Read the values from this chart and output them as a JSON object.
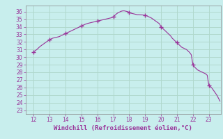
{
  "xlabel": "Windchill (Refroidissement éolien,°C)",
  "xlim": [
    11.5,
    23.75
  ],
  "ylim": [
    22.5,
    36.8
  ],
  "xticks": [
    12,
    13,
    14,
    15,
    16,
    17,
    18,
    19,
    20,
    21,
    22,
    23
  ],
  "yticks": [
    23,
    24,
    25,
    26,
    27,
    28,
    29,
    30,
    31,
    32,
    33,
    34,
    35,
    36
  ],
  "bg_color": "#c8eeed",
  "grid_color": "#b0d8cc",
  "line_color": "#993399",
  "x": [
    12.0,
    12.1,
    12.2,
    12.3,
    12.4,
    12.5,
    12.6,
    12.7,
    12.8,
    12.9,
    13.0,
    13.1,
    13.2,
    13.3,
    13.4,
    13.5,
    13.6,
    13.7,
    13.8,
    13.9,
    14.0,
    14.1,
    14.2,
    14.3,
    14.4,
    14.5,
    14.6,
    14.7,
    14.8,
    14.9,
    15.0,
    15.1,
    15.2,
    15.3,
    15.4,
    15.5,
    15.6,
    15.7,
    15.8,
    15.9,
    16.0,
    16.1,
    16.2,
    16.3,
    16.4,
    16.5,
    16.6,
    16.7,
    16.8,
    16.9,
    17.0,
    17.1,
    17.2,
    17.3,
    17.4,
    17.5,
    17.6,
    17.7,
    17.8,
    17.9,
    18.0,
    18.1,
    18.2,
    18.3,
    18.4,
    18.5,
    18.6,
    18.7,
    18.8,
    18.9,
    19.0,
    19.1,
    19.2,
    19.3,
    19.4,
    19.5,
    19.6,
    19.7,
    19.8,
    19.9,
    20.0,
    20.1,
    20.2,
    20.3,
    20.4,
    20.5,
    20.6,
    20.7,
    20.8,
    20.9,
    21.0,
    21.1,
    21.2,
    21.3,
    21.4,
    21.5,
    21.6,
    21.7,
    21.8,
    21.9,
    22.0,
    22.1,
    22.2,
    22.3,
    22.4,
    22.5,
    22.6,
    22.7,
    22.8,
    22.9,
    23.0,
    23.1,
    23.2,
    23.3,
    23.4,
    23.5,
    23.6,
    23.7
  ],
  "y": [
    30.7,
    30.85,
    31.0,
    31.2,
    31.4,
    31.55,
    31.7,
    31.85,
    32.0,
    32.15,
    32.3,
    32.4,
    32.5,
    32.55,
    32.6,
    32.65,
    32.7,
    32.8,
    32.9,
    33.0,
    33.1,
    33.2,
    33.3,
    33.4,
    33.5,
    33.6,
    33.7,
    33.8,
    33.9,
    34.0,
    34.1,
    34.2,
    34.3,
    34.38,
    34.45,
    34.5,
    34.55,
    34.6,
    34.65,
    34.7,
    34.75,
    34.8,
    34.85,
    34.9,
    34.95,
    35.0,
    35.05,
    35.1,
    35.15,
    35.2,
    35.3,
    35.5,
    35.7,
    35.85,
    35.95,
    36.05,
    36.1,
    36.1,
    36.05,
    36.0,
    35.9,
    35.8,
    35.75,
    35.7,
    35.65,
    35.6,
    35.6,
    35.58,
    35.57,
    35.55,
    35.5,
    35.45,
    35.35,
    35.25,
    35.15,
    35.0,
    34.85,
    34.7,
    34.55,
    34.4,
    34.0,
    33.8,
    33.6,
    33.4,
    33.2,
    33.0,
    32.8,
    32.5,
    32.3,
    32.1,
    31.9,
    31.7,
    31.5,
    31.3,
    31.2,
    31.1,
    31.0,
    30.8,
    30.6,
    30.3,
    29.0,
    28.7,
    28.5,
    28.3,
    28.2,
    28.1,
    28.0,
    27.9,
    27.8,
    27.6,
    26.3,
    26.1,
    25.9,
    25.6,
    25.3,
    25.0,
    24.6,
    24.2
  ],
  "marker_x": [
    12.0,
    13.0,
    14.0,
    15.0,
    16.0,
    17.0,
    18.0,
    19.0,
    20.0,
    21.0,
    22.0,
    23.0
  ],
  "marker_y": [
    30.7,
    32.3,
    33.1,
    34.1,
    34.75,
    35.3,
    35.9,
    35.5,
    34.0,
    31.9,
    29.0,
    26.3
  ],
  "tick_fontsize": 5.5,
  "label_fontsize": 6.5
}
